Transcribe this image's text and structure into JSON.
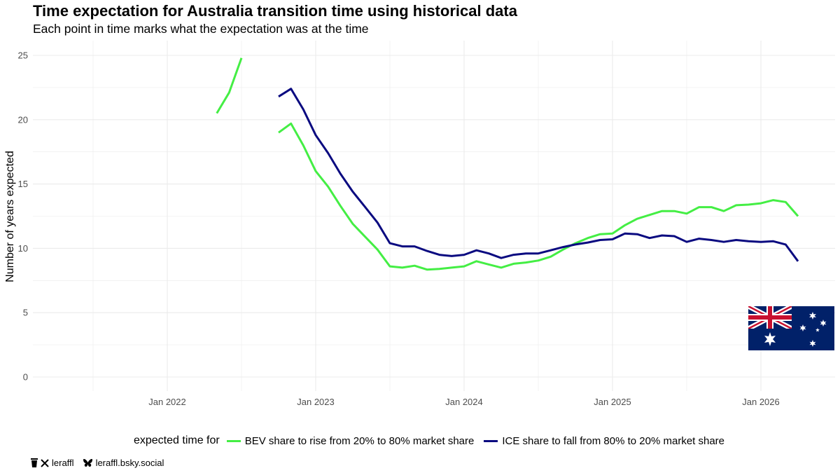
{
  "title": "Time expectation for Australia transition time using historical data",
  "subtitle": "Each point in time marks what the expectation was at the time",
  "legend": {
    "title": "expected time for"
  },
  "credits": {
    "handle": "leraffl",
    "bsky": "leraffl.bsky.social",
    "icons": [
      "coffee-icon",
      "x-logo-icon",
      "bluesky-butterfly-icon"
    ]
  },
  "flag": "australian-flag",
  "colors": {
    "bev": "#44ee44",
    "ice": "#0a0a80",
    "grid": "#ebebeb"
  },
  "chart_data": {
    "type": "line",
    "ylabel": "Number of years expected",
    "xlabel": "",
    "ylim": [
      0,
      25
    ],
    "yticks": [
      0,
      5,
      10,
      15,
      20,
      25
    ],
    "xticks": [
      "Jan 2022",
      "Jan 2023",
      "Jan 2024",
      "Jan 2025",
      "Jan 2026"
    ],
    "grid": true,
    "legend_position": "bottom",
    "series": [
      {
        "name": "BEV share to rise from 20% to 80% market share",
        "segments": [
          {
            "x": [
              "2022-05",
              "2022-06",
              "2022-07"
            ],
            "y": [
              20.5,
              22.1,
              24.8
            ]
          },
          {
            "x": [
              "2022-10",
              "2022-11",
              "2022-12",
              "2023-01",
              "2023-02",
              "2023-03",
              "2023-04",
              "2023-05",
              "2023-06",
              "2023-07",
              "2023-08",
              "2023-09",
              "2023-10",
              "2023-11",
              "2023-12",
              "2024-01",
              "2024-02",
              "2024-03",
              "2024-04",
              "2024-05",
              "2024-06",
              "2024-07",
              "2024-08",
              "2024-09",
              "2024-10",
              "2024-11",
              "2024-12",
              "2025-01",
              "2025-02",
              "2025-03",
              "2025-04",
              "2025-05",
              "2025-06",
              "2025-07",
              "2025-08",
              "2025-09",
              "2025-10",
              "2025-11",
              "2025-12",
              "2026-01",
              "2026-02",
              "2026-03",
              "2026-04"
            ],
            "y": [
              19.0,
              19.7,
              18.0,
              16.0,
              14.8,
              13.3,
              11.9,
              10.9,
              9.9,
              8.6,
              8.5,
              8.65,
              8.35,
              8.4,
              8.5,
              8.6,
              9.0,
              8.75,
              8.5,
              8.8,
              8.9,
              9.05,
              9.35,
              9.9,
              10.4,
              10.8,
              11.1,
              11.15,
              11.8,
              12.3,
              12.6,
              12.9,
              12.9,
              12.7,
              13.2,
              13.2,
              12.9,
              13.35,
              13.4,
              13.5,
              13.75,
              13.6,
              12.5
            ]
          }
        ]
      },
      {
        "name": "ICE share to fall from 80% to 20% market share",
        "segments": [
          {
            "x": [
              "2022-10",
              "2022-11",
              "2022-12",
              "2023-01",
              "2023-02",
              "2023-03",
              "2023-04",
              "2023-05",
              "2023-06",
              "2023-07",
              "2023-08",
              "2023-09",
              "2023-10",
              "2023-11",
              "2023-12",
              "2024-01",
              "2024-02",
              "2024-03",
              "2024-04",
              "2024-05",
              "2024-06",
              "2024-07",
              "2024-08",
              "2024-09",
              "2024-10",
              "2024-11",
              "2024-12",
              "2025-01",
              "2025-02",
              "2025-03",
              "2025-04",
              "2025-05",
              "2025-06",
              "2025-07",
              "2025-08",
              "2025-09",
              "2025-10",
              "2025-11",
              "2025-12",
              "2026-01",
              "2026-02",
              "2026-03",
              "2026-04"
            ],
            "y": [
              21.8,
              22.4,
              20.8,
              18.8,
              17.4,
              15.8,
              14.4,
              13.2,
              12.0,
              10.4,
              10.15,
              10.15,
              9.8,
              9.5,
              9.4,
              9.5,
              9.85,
              9.6,
              9.25,
              9.5,
              9.6,
              9.6,
              9.85,
              10.1,
              10.3,
              10.45,
              10.65,
              10.7,
              11.15,
              11.1,
              10.8,
              11.0,
              10.95,
              10.5,
              10.75,
              10.65,
              10.5,
              10.65,
              10.55,
              10.5,
              10.55,
              10.3,
              9.0
            ]
          }
        ]
      }
    ]
  }
}
